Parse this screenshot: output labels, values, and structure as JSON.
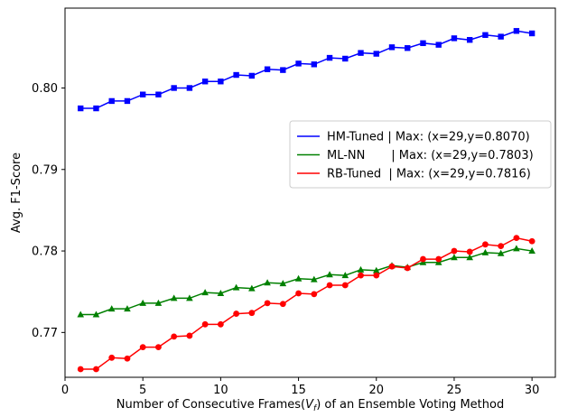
{
  "chart_data": {
    "type": "line",
    "xlabel_prefix": "Number of Consecutive Frames(",
    "xlabel_var": "V",
    "xlabel_sub": "f",
    "xlabel_suffix": ") of an Ensemble Voting Method",
    "ylabel": "Avg. F1-Score",
    "xlim": [
      0,
      31.5
    ],
    "ylim": [
      0.7645,
      0.8098
    ],
    "xticks": [
      0,
      5,
      10,
      15,
      20,
      25,
      30
    ],
    "yticks": [
      0.77,
      0.78,
      0.79,
      0.8
    ],
    "ytick_labels": [
      "0.77",
      "0.78",
      "0.79",
      "0.80"
    ],
    "legend_position": "center-right",
    "grid": false,
    "x": [
      1,
      2,
      3,
      4,
      5,
      6,
      7,
      8,
      9,
      10,
      11,
      12,
      13,
      14,
      15,
      16,
      17,
      18,
      19,
      20,
      21,
      22,
      23,
      24,
      25,
      26,
      27,
      28,
      29,
      30
    ],
    "series": [
      {
        "name": "HM-Tuned",
        "legend_label": "HM-Tuned | Max: (x=29,y=0.8070)",
        "color": "#0000ff",
        "marker": "square",
        "values": [
          0.7975,
          0.7975,
          0.7984,
          0.7984,
          0.7992,
          0.7992,
          0.8,
          0.8,
          0.8008,
          0.8008,
          0.8016,
          0.8015,
          0.8023,
          0.8022,
          0.803,
          0.8029,
          0.8037,
          0.8036,
          0.8043,
          0.8042,
          0.805,
          0.8049,
          0.8055,
          0.8053,
          0.8061,
          0.8059,
          0.8065,
          0.8063,
          0.807,
          0.8067
        ]
      },
      {
        "name": "ML-NN",
        "legend_label": "ML-NN       | Max: (x=29,y=0.7803)",
        "color": "#008000",
        "marker": "triangle",
        "values": [
          0.7722,
          0.7722,
          0.7729,
          0.7729,
          0.7736,
          0.7736,
          0.7742,
          0.7742,
          0.7749,
          0.7748,
          0.7755,
          0.7754,
          0.7761,
          0.776,
          0.7766,
          0.7765,
          0.7771,
          0.777,
          0.7777,
          0.7776,
          0.7782,
          0.778,
          0.7786,
          0.7786,
          0.7792,
          0.7792,
          0.7798,
          0.7797,
          0.7803,
          0.78
        ]
      },
      {
        "name": "RB-Tuned",
        "legend_label": "RB-Tuned  | Max: (x=29,y=0.7816)",
        "color": "#ff0000",
        "marker": "circle",
        "values": [
          0.7655,
          0.7655,
          0.7669,
          0.7668,
          0.7682,
          0.7682,
          0.7695,
          0.7696,
          0.771,
          0.771,
          0.7723,
          0.7724,
          0.7736,
          0.7735,
          0.7748,
          0.7747,
          0.7758,
          0.7758,
          0.777,
          0.777,
          0.7781,
          0.7779,
          0.779,
          0.779,
          0.78,
          0.7799,
          0.7808,
          0.7806,
          0.7816,
          0.7812
        ]
      }
    ]
  }
}
